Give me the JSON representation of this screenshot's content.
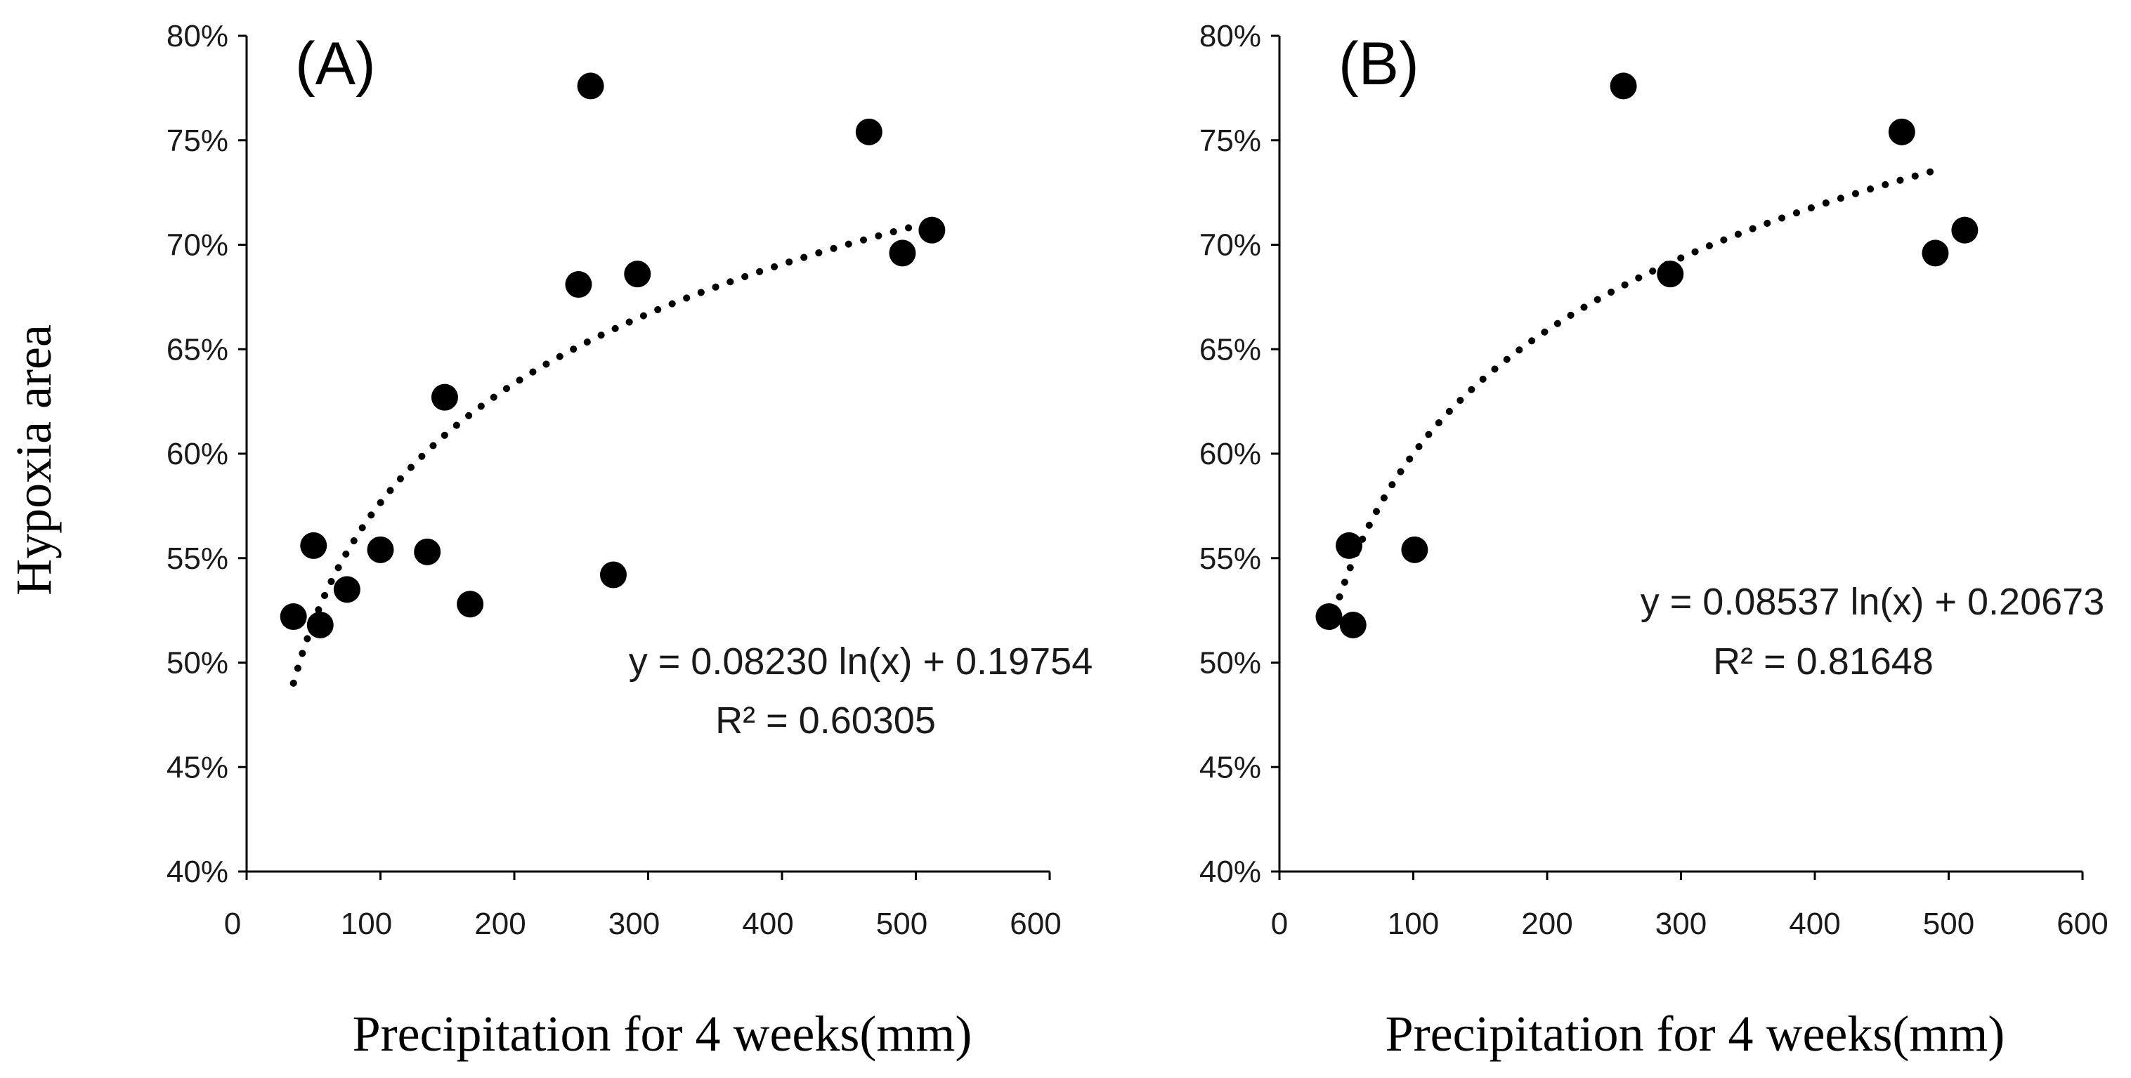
{
  "colors": {
    "points": "#000000",
    "trend": "#000000",
    "text": "#1a1a1a"
  },
  "y_axis_title": "Hypoxia area",
  "chart_data": [
    {
      "type": "scatter",
      "panel_label": "(A)",
      "xlabel": "Precipitation for 4 weeks(mm)",
      "ylabel": "Hypoxia area",
      "xlim": [
        0,
        600
      ],
      "ylim": [
        0.4,
        0.8
      ],
      "x_ticks": [
        0,
        100,
        200,
        300,
        400,
        500,
        600
      ],
      "x_tick_labels": [
        "0",
        "100",
        "200",
        "300",
        "400",
        "500",
        "600"
      ],
      "y_ticks": [
        0.4,
        0.45,
        0.5,
        0.55,
        0.6,
        0.65,
        0.7,
        0.75,
        0.8
      ],
      "y_tick_labels": [
        "40%",
        "45%",
        "50%",
        "55%",
        "60%",
        "65%",
        "70%",
        "75%",
        "80%"
      ],
      "grid": false,
      "points": [
        {
          "x": 35,
          "y": 0.522
        },
        {
          "x": 50,
          "y": 0.556
        },
        {
          "x": 55,
          "y": 0.518
        },
        {
          "x": 75,
          "y": 0.535
        },
        {
          "x": 100,
          "y": 0.554
        },
        {
          "x": 135,
          "y": 0.553
        },
        {
          "x": 148,
          "y": 0.627
        },
        {
          "x": 167,
          "y": 0.528
        },
        {
          "x": 248,
          "y": 0.681
        },
        {
          "x": 257,
          "y": 0.776
        },
        {
          "x": 274,
          "y": 0.542
        },
        {
          "x": 292,
          "y": 0.686
        },
        {
          "x": 465,
          "y": 0.754
        },
        {
          "x": 490,
          "y": 0.696
        },
        {
          "x": 512,
          "y": 0.707
        }
      ],
      "trendline": {
        "kind": "log",
        "a": 0.0823,
        "b": 0.19754,
        "x_range": [
          35,
          500
        ]
      },
      "equation": "y = 0.08230 ln(x) + 0.19754",
      "r_squared": "R² = 0.60305"
    },
    {
      "type": "scatter",
      "panel_label": "(B)",
      "xlabel": "Precipitation for 4 weeks(mm)",
      "ylabel": "Hypoxia area",
      "xlim": [
        0,
        600
      ],
      "ylim": [
        0.4,
        0.8
      ],
      "x_ticks": [
        0,
        100,
        200,
        300,
        400,
        500,
        600
      ],
      "x_tick_labels": [
        "0",
        "100",
        "200",
        "300",
        "400",
        "500",
        "600"
      ],
      "y_ticks": [
        0.4,
        0.45,
        0.5,
        0.55,
        0.6,
        0.65,
        0.7,
        0.75,
        0.8
      ],
      "y_tick_labels": [
        "40%",
        "45%",
        "50%",
        "55%",
        "60%",
        "65%",
        "70%",
        "75%",
        "80%"
      ],
      "grid": false,
      "points": [
        {
          "x": 37,
          "y": 0.522
        },
        {
          "x": 52,
          "y": 0.556
        },
        {
          "x": 55,
          "y": 0.518
        },
        {
          "x": 101,
          "y": 0.554
        },
        {
          "x": 257,
          "y": 0.776
        },
        {
          "x": 292,
          "y": 0.686
        },
        {
          "x": 465,
          "y": 0.754
        },
        {
          "x": 490,
          "y": 0.696
        },
        {
          "x": 512,
          "y": 0.707
        }
      ],
      "trendline": {
        "kind": "log",
        "a": 0.08537,
        "b": 0.20673,
        "x_range": [
          38,
          495
        ]
      },
      "equation": "y = 0.08537 ln(x) + 0.20673",
      "r_squared": "R² = 0.81648"
    }
  ]
}
